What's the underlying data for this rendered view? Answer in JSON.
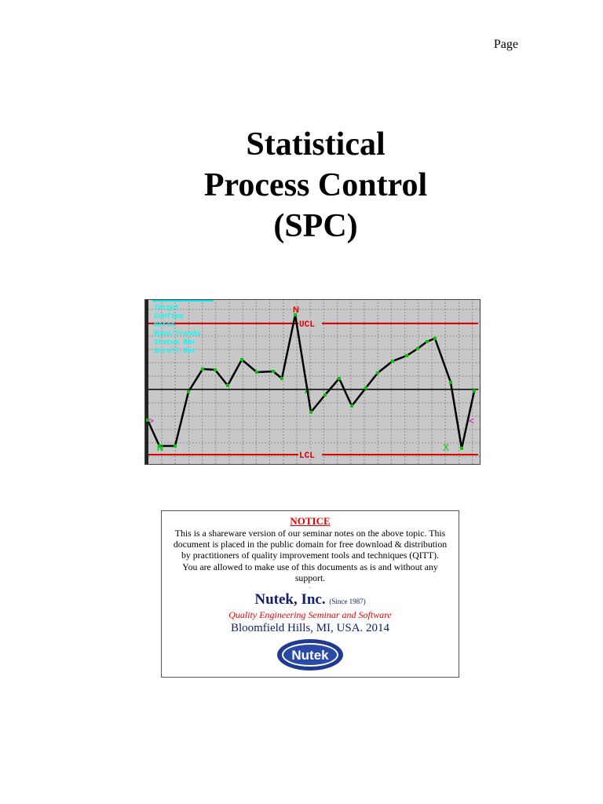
{
  "header": {
    "page_label": "Page"
  },
  "title": {
    "lines": [
      "Statistical",
      "Process Control",
      "(SPC)"
    ]
  },
  "chart": {
    "menu_items": [
      "Target",
      "Confine",
      "Notes",
      "Runs/Trends",
      "Status Bar",
      "Scroll Bar"
    ],
    "ucl_label": "UCL",
    "lcl_label": "LCL",
    "mean_label": "A",
    "marker_n_top": "N",
    "marker_n_bottom": "N",
    "marker_x": "X",
    "marker_left": ">",
    "marker_right": "<",
    "colors": {
      "background": "#c8c8c8",
      "grid": "#8e8e8e",
      "limits": "#e00000",
      "center": "#000000",
      "line": "#000000",
      "points": "#00c800",
      "menu_text": "#00ffff",
      "marker": "#e00000",
      "marker_x": "#00c800",
      "marker_side": "#d000d0"
    }
  },
  "notice": {
    "title": "NOTICE",
    "lines": [
      "This is a shareware version of our seminar notes on the above topic. This",
      "document is placed in the public domain for free download & distribution",
      "by practitioners of  quality improvement tools and techniques (QITT).",
      "You are allowed to make use of this documents as is and without any",
      "support."
    ],
    "dot": ".",
    "company": "Nutek, Inc.",
    "since": "(Since 1987)",
    "tagline": "Quality Engineering Seminar and Software",
    "location": "Bloomfield Hills, MI, USA. 2014",
    "logo_text": "Nutek"
  }
}
